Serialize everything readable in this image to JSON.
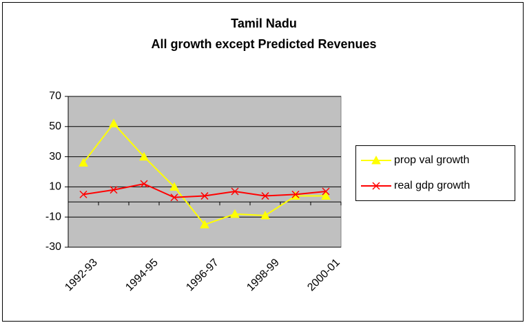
{
  "chart_data": {
    "type": "line",
    "title": [
      "Tamil Nadu",
      "All growth except Predicted Revenues"
    ],
    "categories": [
      "1992-93",
      null,
      "1994-95",
      null,
      "1996-97",
      null,
      "1998-99",
      null,
      "2000-01"
    ],
    "series": [
      {
        "name": "prop val growth",
        "color": "#ffff00",
        "marker": "triangle",
        "values": [
          26,
          52,
          30,
          10,
          -15,
          -8,
          -9,
          4,
          4
        ]
      },
      {
        "name": "real gdp growth",
        "color": "#ff0000",
        "marker": "x",
        "values": [
          5,
          8,
          12,
          3,
          4,
          7,
          4,
          5,
          7
        ]
      }
    ],
    "ylim": [
      -30,
      70
    ],
    "yticks": [
      -30,
      -10,
      10,
      30,
      50,
      70
    ],
    "grid": true,
    "legend": "right"
  }
}
